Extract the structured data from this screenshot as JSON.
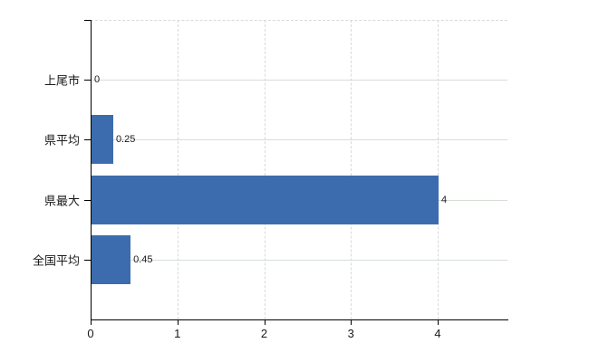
{
  "chart_data": {
    "type": "bar",
    "orientation": "horizontal",
    "title": "",
    "categories": [
      "上尾市",
      "県平均",
      "県最大",
      "全国平均"
    ],
    "values": [
      0,
      0.25,
      4,
      0.45
    ],
    "value_labels": [
      "0",
      "0.25",
      "4",
      "0.45"
    ],
    "x_ticks": [
      0,
      1,
      2,
      3,
      4
    ],
    "x_tick_labels": [
      "0",
      "1",
      "2",
      "3",
      "4"
    ],
    "xlim": [
      0,
      4.8
    ],
    "grid": true,
    "legend": false,
    "colors": {
      "bar": "#3c6cae",
      "axis": "#000000",
      "h_gridline": "#d6ded6",
      "v_gridline": "#d9d9d9",
      "text": "#1a1a1a"
    }
  }
}
